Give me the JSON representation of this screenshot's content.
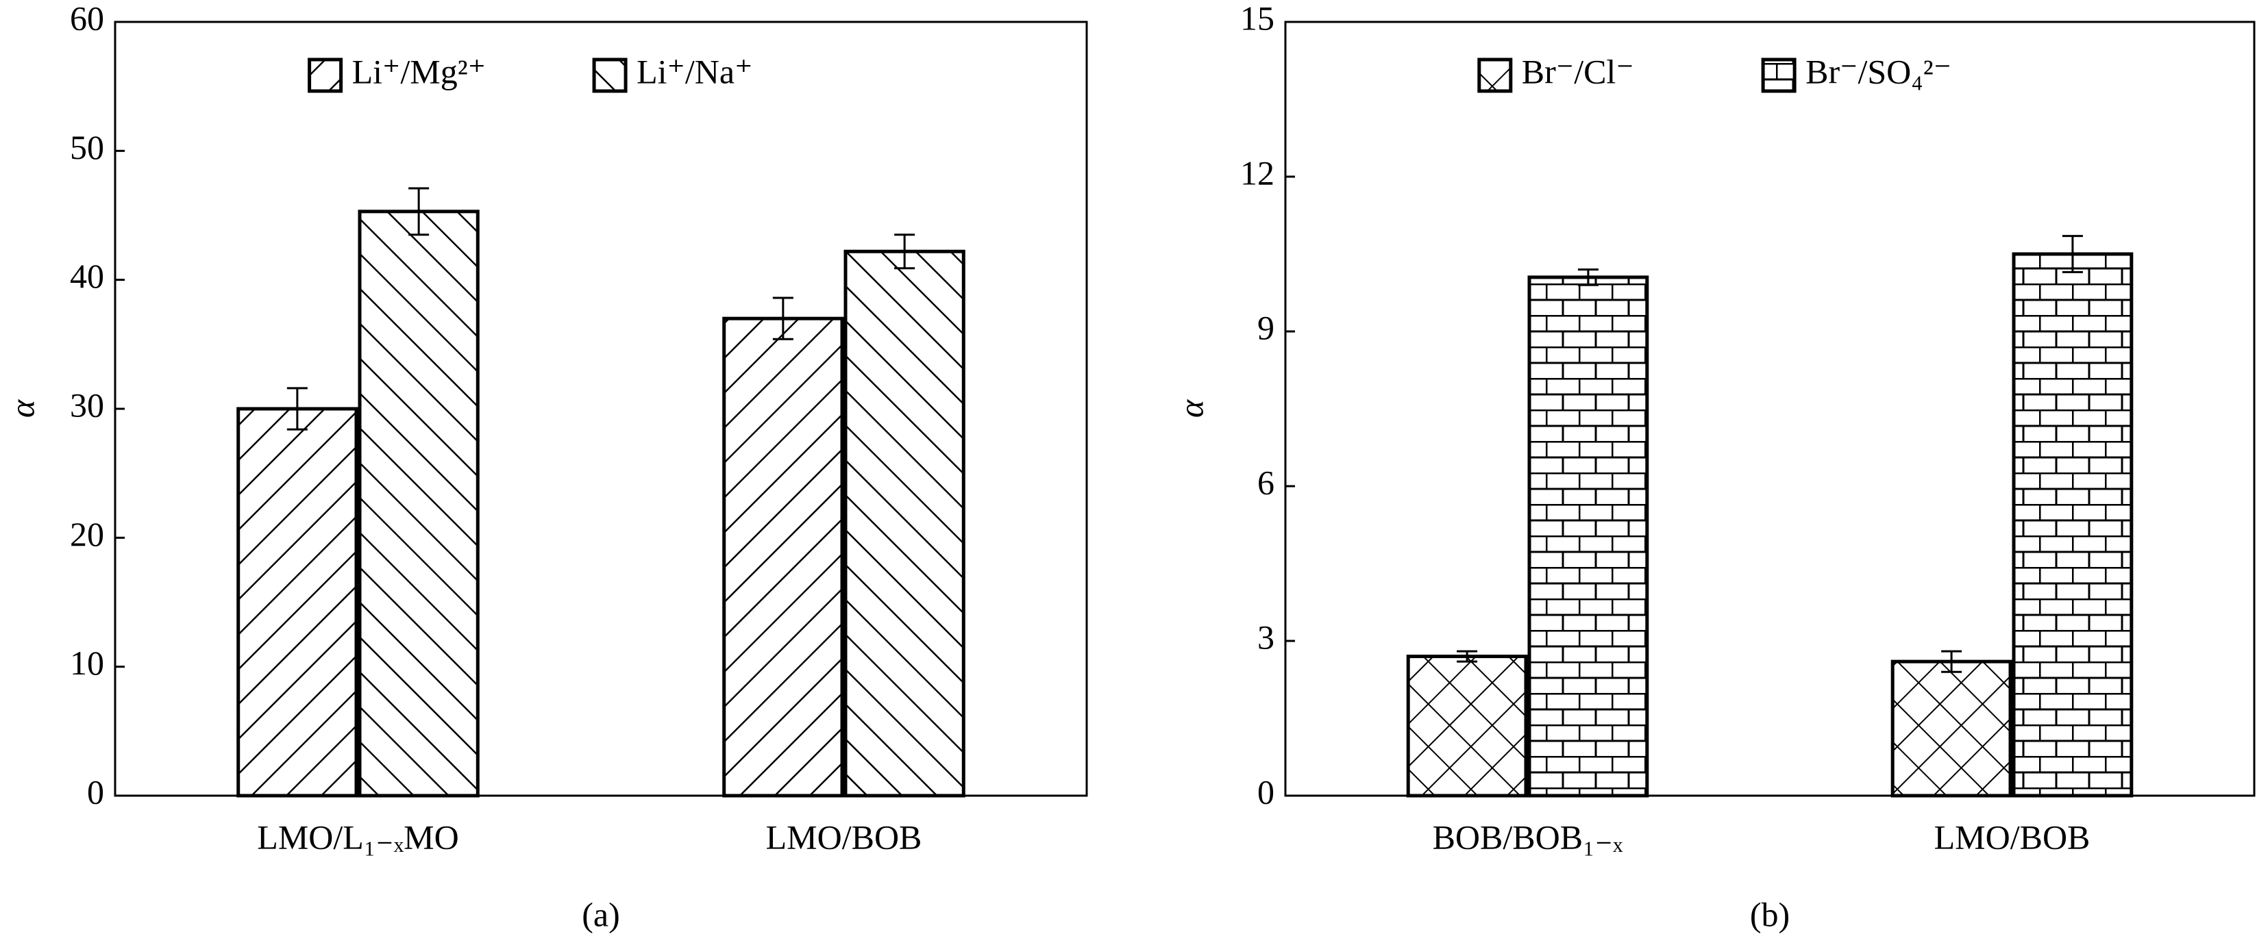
{
  "chart_data": [
    {
      "type": "bar",
      "caption": "(a)",
      "ylabel": "α",
      "categories": [
        "LMO/L₁₋ₓMO",
        "LMO/BOB"
      ],
      "series": [
        {
          "name": "Li⁺/Mg²⁺",
          "color": "#000000",
          "hatch": "/",
          "values": [
            30,
            37
          ],
          "errors": [
            1.6,
            1.6
          ]
        },
        {
          "name": "Li⁺/Na⁺",
          "color": "#000000",
          "hatch": "\\",
          "values": [
            45.3,
            42.2
          ],
          "errors": [
            1.8,
            1.3
          ]
        }
      ],
      "ylim": [
        0,
        60
      ],
      "yticks": [
        0,
        10,
        20,
        30,
        40,
        50,
        60
      ]
    },
    {
      "type": "bar",
      "caption": "(b)",
      "ylabel": "α",
      "categories": [
        "BOB/BOB₁₋ₓ",
        "LMO/BOB"
      ],
      "series": [
        {
          "name": "Br⁻/Cl⁻",
          "color": "#000000",
          "hatch": "x",
          "values": [
            2.7,
            2.6
          ],
          "errors": [
            0.1,
            0.2
          ]
        },
        {
          "name": "Br⁻/SO₄²⁻",
          "color": "#000000",
          "hatch": "brick",
          "values": [
            10.05,
            10.5
          ],
          "errors": [
            0.15,
            0.35
          ]
        }
      ],
      "ylim": [
        0,
        15
      ],
      "yticks": [
        0,
        3,
        6,
        9,
        12,
        15
      ]
    }
  ]
}
